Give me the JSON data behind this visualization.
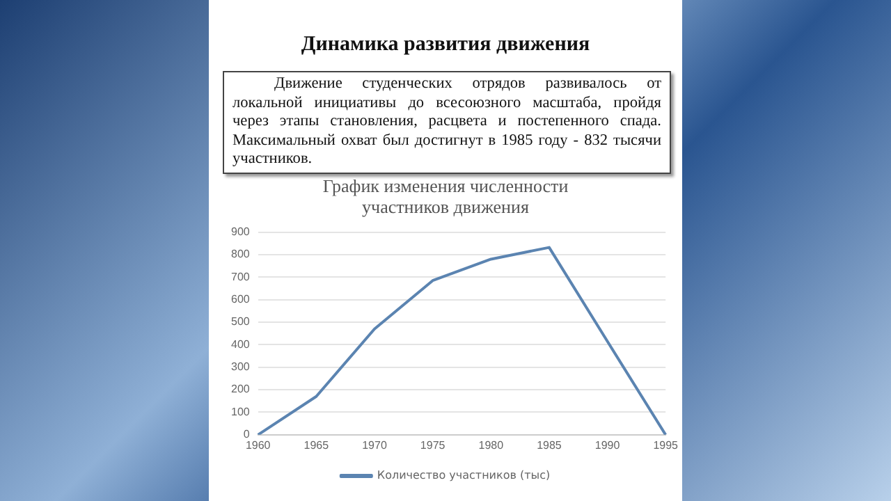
{
  "chart_data": {
    "type": "line",
    "title": "Динамика развития движения",
    "subtitle": "График изменения численности участников движения",
    "annotations": [
      "Движение студенческих отрядов развивалось от локальной инициативы до всесоюзного масштаба, пройдя через этапы становления, расцвета и постепенного спада. Максимальный охват был достигнут в 1985 году - 832 тысячи участников."
    ],
    "categories": [
      "1960",
      "1965",
      "1970",
      "1975",
      "1980",
      "1985",
      "1990",
      "1995"
    ],
    "series": [
      {
        "name": "Количество участников (тыс)",
        "color": "#5b84b1",
        "values": [
          0,
          170,
          470,
          685,
          780,
          832,
          415,
          0
        ]
      }
    ],
    "ylim": [
      0,
      900
    ],
    "yticks": [
      0,
      100,
      200,
      300,
      400,
      500,
      600,
      700,
      800,
      900
    ],
    "grid": "y",
    "legend": "bottom",
    "marker": "none",
    "line_style": "solid"
  }
}
